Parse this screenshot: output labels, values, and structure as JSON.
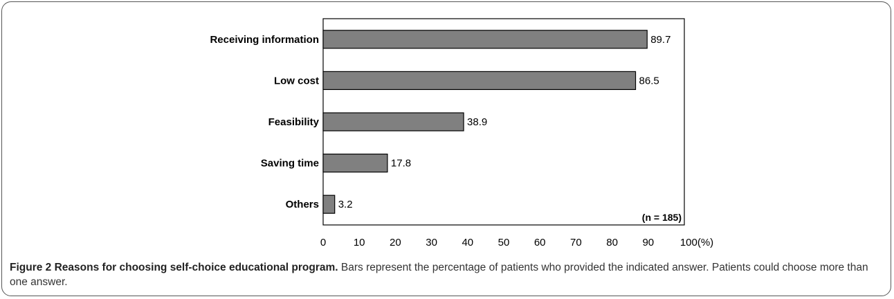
{
  "chart_data": {
    "type": "bar",
    "orientation": "horizontal",
    "categories": [
      "Receiving information",
      "Low cost",
      "Feasibility",
      "Saving time",
      "Others"
    ],
    "values": [
      89.7,
      86.5,
      38.9,
      17.8,
      3.2
    ],
    "value_labels": [
      "89.7",
      "86.5",
      "38.9",
      "17.8",
      "3.2"
    ],
    "xlim": [
      0,
      100
    ],
    "x_ticks": [
      0,
      10,
      20,
      30,
      40,
      50,
      60,
      70,
      80,
      90,
      100
    ],
    "x_unit": "(%)",
    "annotation": "(n = 185)",
    "bar_color": "#808080",
    "grid": false
  },
  "caption": {
    "label": "Figure 2",
    "title": "Reasons for choosing self-choice educational program.",
    "text": "Bars represent the percentage of patients who provided the indicated answer. Patients could choose more than one answer."
  }
}
